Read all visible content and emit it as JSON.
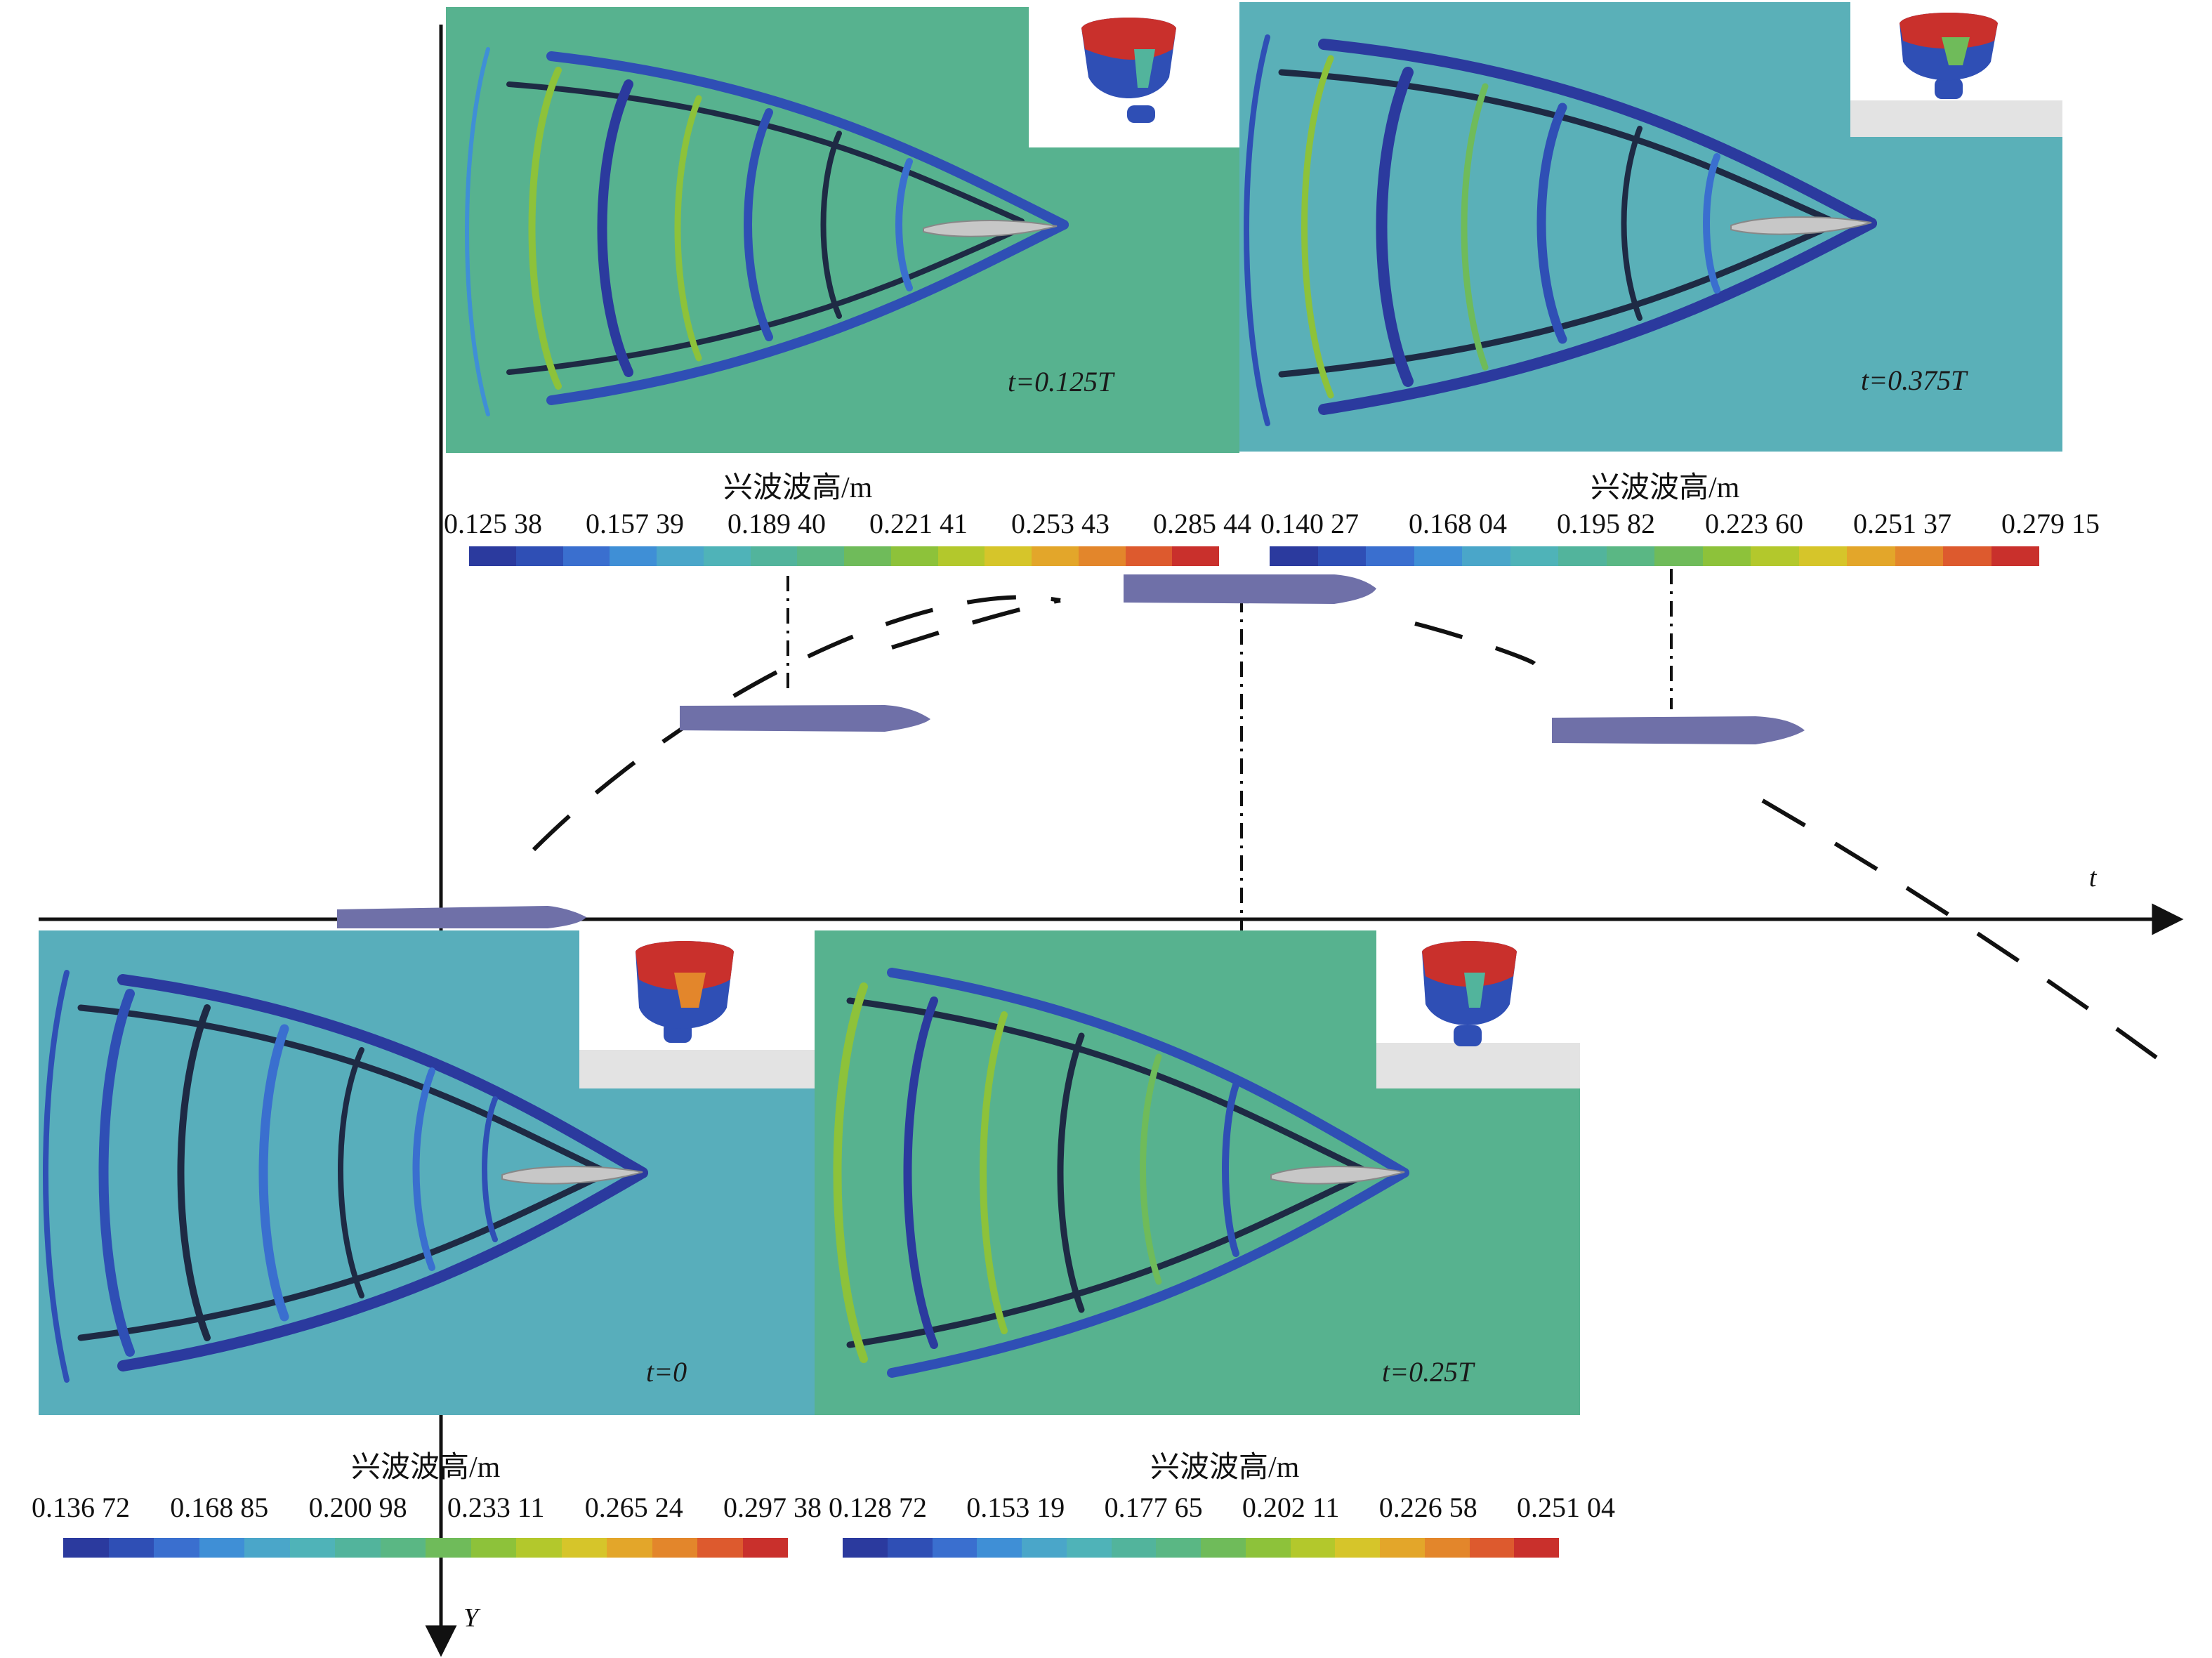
{
  "axes": {
    "t_label": "t",
    "y_label": "Y"
  },
  "panels": [
    {
      "id": "p0125",
      "time_label": "t=0.125T",
      "colorbar_title": "兴波波高/m",
      "ticks": [
        "0.125 38",
        "0.157 39",
        "0.189 40",
        "0.221 41",
        "0.253 43",
        "0.285 44"
      ],
      "bg": "#57b28f"
    },
    {
      "id": "p0375",
      "time_label": "t=0.375T",
      "colorbar_title": "兴波波高/m",
      "ticks": [
        "0.140 27",
        "0.168 04",
        "0.195 82",
        "0.223 60",
        "0.251 37",
        "0.279 15"
      ],
      "bg": "#5ab0b8"
    },
    {
      "id": "p0",
      "time_label": "t=0",
      "colorbar_title": "兴波波高/m",
      "ticks": [
        "0.136 72",
        "0.168 85",
        "0.200 98",
        "0.233 11",
        "0.265 24",
        "0.297 38"
      ],
      "bg": "#58aebb"
    },
    {
      "id": "p025",
      "time_label": "t=0.25T",
      "colorbar_title": "兴波波高/m",
      "ticks": [
        "0.128 72",
        "0.153 19",
        "0.177 65",
        "0.202 11",
        "0.226 58",
        "0.251 04"
      ],
      "bg": "#57b28f"
    }
  ],
  "colors": {
    "colormap": [
      "#2b3a9e",
      "#2f4fb5",
      "#3a6fcf",
      "#3f8fd6",
      "#4aa6c9",
      "#4fb3b8",
      "#52b49c",
      "#5ab784",
      "#6fbb5a",
      "#8dc23a",
      "#b3c82c",
      "#d6c52a",
      "#e3a62a",
      "#e3862b",
      "#dd5a2e",
      "#c9302c"
    ],
    "ship_hull": "#6f70a8",
    "axis": "#111111"
  }
}
